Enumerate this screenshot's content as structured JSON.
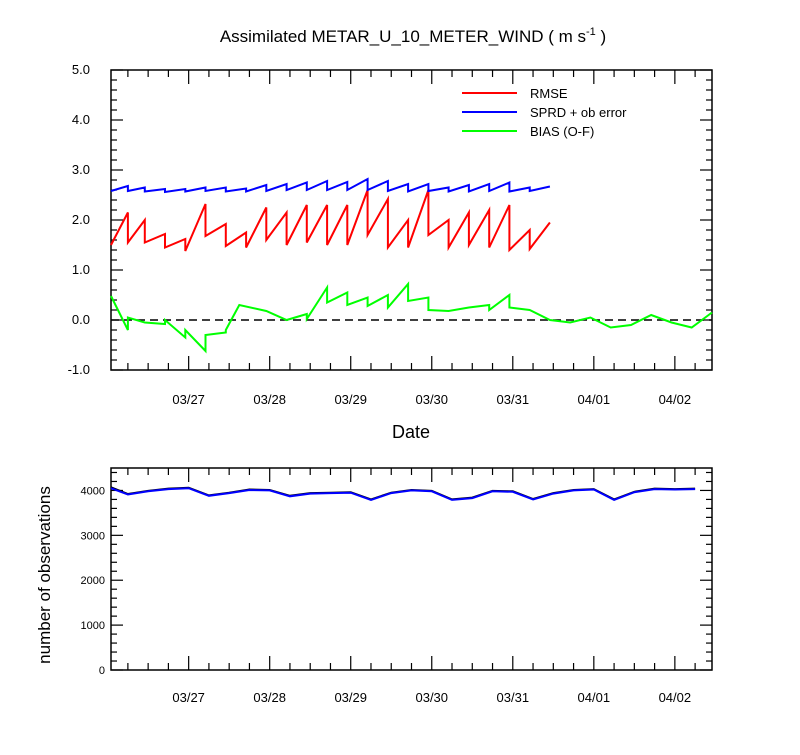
{
  "chart_data": [
    {
      "type": "line",
      "title_main": "Assimilated METAR_U_10_METER_WIND ( m s",
      "title_sup": "-1",
      "title_close": " )",
      "xlabel": "Date",
      "ylabel": "",
      "ylim": [
        -1.0,
        5.0
      ],
      "yticks": [
        "-1.0",
        "0.0",
        "1.0",
        "2.0",
        "3.0",
        "4.0",
        "5.0"
      ],
      "xlim": [
        "03/26 13:00",
        "04/02 23:00"
      ],
      "xtick_labels": [
        "03/27",
        "03/28",
        "03/29",
        "03/30",
        "03/31",
        "04/01",
        "04/02"
      ],
      "zero_line": true,
      "legend_position": "top-right",
      "series": [
        {
          "name": "RMSE",
          "color": "#ff0000",
          "points": [
            [
              "03/26 13:00",
              1.5
            ],
            [
              "03/26 18:00",
              2.15
            ],
            [
              "03/26 18:00",
              1.55
            ],
            [
              "03/26 23:00",
              2.0
            ],
            [
              "03/26 23:00",
              1.55
            ],
            [
              "03/27 05:00",
              1.72
            ],
            [
              "03/27 05:00",
              1.45
            ],
            [
              "03/27 11:00",
              1.62
            ],
            [
              "03/27 11:00",
              1.38
            ],
            [
              "03/27 17:00",
              2.32
            ],
            [
              "03/27 17:00",
              1.68
            ],
            [
              "03/27 23:00",
              1.92
            ],
            [
              "03/27 23:00",
              1.48
            ],
            [
              "03/28 05:00",
              1.75
            ],
            [
              "03/28 05:00",
              1.45
            ],
            [
              "03/28 11:00",
              2.25
            ],
            [
              "03/28 11:00",
              1.6
            ],
            [
              "03/28 17:00",
              2.15
            ],
            [
              "03/28 17:00",
              1.5
            ],
            [
              "03/28 23:00",
              2.3
            ],
            [
              "03/28 23:00",
              1.55
            ],
            [
              "03/29 05:00",
              2.3
            ],
            [
              "03/29 05:00",
              1.5
            ],
            [
              "03/29 11:00",
              2.3
            ],
            [
              "03/29 11:00",
              1.5
            ],
            [
              "03/29 17:00",
              2.6
            ],
            [
              "03/29 17:00",
              1.7
            ],
            [
              "03/29 23:00",
              2.42
            ],
            [
              "03/29 23:00",
              1.45
            ],
            [
              "03/30 05:00",
              2.0
            ],
            [
              "03/30 05:00",
              1.45
            ],
            [
              "03/30 11:00",
              2.6
            ],
            [
              "03/30 11:00",
              1.7
            ],
            [
              "03/30 17:00",
              2.0
            ],
            [
              "03/30 17:00",
              1.45
            ],
            [
              "03/30 23:00",
              2.15
            ],
            [
              "03/30 23:00",
              1.5
            ],
            [
              "03/31 05:00",
              2.2
            ],
            [
              "03/31 05:00",
              1.45
            ],
            [
              "03/31 11:00",
              2.3
            ],
            [
              "03/31 11:00",
              1.4
            ],
            [
              "03/31 17:00",
              1.8
            ],
            [
              "03/31 17:00",
              1.42
            ],
            [
              "03/31 23:00",
              1.95
            ]
          ]
        },
        {
          "name": "SPRD + ob error",
          "color": "#0000ff",
          "points": [
            [
              "03/26 13:00",
              2.58
            ],
            [
              "03/26 18:00",
              2.68
            ],
            [
              "03/26 18:00",
              2.58
            ],
            [
              "03/26 23:00",
              2.65
            ],
            [
              "03/26 23:00",
              2.57
            ],
            [
              "03/27 05:00",
              2.62
            ],
            [
              "03/27 05:00",
              2.56
            ],
            [
              "03/27 11:00",
              2.62
            ],
            [
              "03/27 11:00",
              2.57
            ],
            [
              "03/27 17:00",
              2.65
            ],
            [
              "03/27 17:00",
              2.58
            ],
            [
              "03/27 23:00",
              2.65
            ],
            [
              "03/27 23:00",
              2.57
            ],
            [
              "03/28 05:00",
              2.63
            ],
            [
              "03/28 05:00",
              2.57
            ],
            [
              "03/28 11:00",
              2.7
            ],
            [
              "03/28 11:00",
              2.58
            ],
            [
              "03/28 17:00",
              2.72
            ],
            [
              "03/28 17:00",
              2.6
            ],
            [
              "03/28 23:00",
              2.75
            ],
            [
              "03/28 23:00",
              2.6
            ],
            [
              "03/29 05:00",
              2.78
            ],
            [
              "03/29 05:00",
              2.6
            ],
            [
              "03/29 11:00",
              2.76
            ],
            [
              "03/29 11:00",
              2.6
            ],
            [
              "03/29 17:00",
              2.82
            ],
            [
              "03/29 17:00",
              2.6
            ],
            [
              "03/29 23:00",
              2.78
            ],
            [
              "03/29 23:00",
              2.58
            ],
            [
              "03/30 05:00",
              2.72
            ],
            [
              "03/30 05:00",
              2.57
            ],
            [
              "03/30 11:00",
              2.72
            ],
            [
              "03/30 11:00",
              2.58
            ],
            [
              "03/30 17:00",
              2.65
            ],
            [
              "03/30 17:00",
              2.57
            ],
            [
              "03/30 23:00",
              2.7
            ],
            [
              "03/30 23:00",
              2.57
            ],
            [
              "03/31 05:00",
              2.72
            ],
            [
              "03/31 05:00",
              2.58
            ],
            [
              "03/31 11:00",
              2.75
            ],
            [
              "03/31 11:00",
              2.57
            ],
            [
              "03/31 17:00",
              2.65
            ],
            [
              "03/31 17:00",
              2.58
            ],
            [
              "03/31 23:00",
              2.67
            ]
          ]
        },
        {
          "name": "BIAS (O-F)",
          "color": "#00ff00",
          "points": [
            [
              "03/26 13:00",
              0.48
            ],
            [
              "03/26 18:00",
              -0.2
            ],
            [
              "03/26 18:00",
              0.05
            ],
            [
              "03/26 23:00",
              -0.05
            ],
            [
              "03/27 05:00",
              -0.08
            ],
            [
              "03/27 05:00",
              0.0
            ],
            [
              "03/27 11:00",
              -0.35
            ],
            [
              "03/27 11:00",
              -0.2
            ],
            [
              "03/27 17:00",
              -0.62
            ],
            [
              "03/27 17:00",
              -0.3
            ],
            [
              "03/27 23:00",
              -0.25
            ],
            [
              "03/27 23:00",
              -0.2
            ],
            [
              "03/28 03:00",
              0.3
            ],
            [
              "03/28 11:00",
              0.18
            ],
            [
              "03/28 17:00",
              0.0
            ],
            [
              "03/28 23:00",
              0.12
            ],
            [
              "03/28 23:00",
              0.02
            ],
            [
              "03/29 05:00",
              0.65
            ],
            [
              "03/29 05:00",
              0.35
            ],
            [
              "03/29 11:00",
              0.55
            ],
            [
              "03/29 11:00",
              0.3
            ],
            [
              "03/29 17:00",
              0.45
            ],
            [
              "03/29 17:00",
              0.28
            ],
            [
              "03/29 23:00",
              0.5
            ],
            [
              "03/29 23:00",
              0.25
            ],
            [
              "03/30 05:00",
              0.72
            ],
            [
              "03/30 05:00",
              0.38
            ],
            [
              "03/30 11:00",
              0.45
            ],
            [
              "03/30 11:00",
              0.2
            ],
            [
              "03/30 17:00",
              0.18
            ],
            [
              "03/30 23:00",
              0.25
            ],
            [
              "03/31 05:00",
              0.3
            ],
            [
              "03/31 05:00",
              0.2
            ],
            [
              "03/31 11:00",
              0.5
            ],
            [
              "03/31 11:00",
              0.25
            ],
            [
              "03/31 17:00",
              0.2
            ],
            [
              "03/31 23:00",
              0.0
            ],
            [
              "04/01 05:00",
              -0.05
            ],
            [
              "04/01 11:00",
              0.05
            ],
            [
              "04/01 17:00",
              -0.15
            ],
            [
              "04/01 23:00",
              -0.1
            ],
            [
              "04/02 05:00",
              0.1
            ],
            [
              "04/02 11:00",
              -0.05
            ],
            [
              "04/02 17:00",
              -0.15
            ],
            [
              "04/02 23:00",
              0.15
            ]
          ]
        }
      ]
    },
    {
      "type": "line",
      "title": "",
      "xlabel": "",
      "ylabel": "number of observations",
      "ylim": [
        0,
        4500
      ],
      "yticks": [
        "0",
        "1000",
        "2000",
        "3000",
        "4000"
      ],
      "xlim": [
        "03/26 13:00",
        "04/02 23:00"
      ],
      "xtick_labels": [
        "03/27",
        "03/28",
        "03/29",
        "03/30",
        "03/31",
        "04/01",
        "04/02"
      ],
      "series": [
        {
          "color": "#000000",
          "points": [
            [
              "03/26 13:00",
              4070
            ],
            [
              "03/26 18:00",
              3920
            ],
            [
              "03/27 00:00",
              3990
            ],
            [
              "03/27 06:00",
              4040
            ],
            [
              "03/27 12:00",
              4060
            ],
            [
              "03/27 18:00",
              3890
            ],
            [
              "03/28 00:00",
              3950
            ],
            [
              "03/28 06:00",
              4020
            ],
            [
              "03/28 12:00",
              4010
            ],
            [
              "03/28 18:00",
              3880
            ],
            [
              "03/29 00:00",
              3940
            ],
            [
              "03/29 06:00",
              3950
            ],
            [
              "03/29 12:00",
              3960
            ],
            [
              "03/29 18:00",
              3800
            ],
            [
              "03/30 00:00",
              3950
            ],
            [
              "03/30 06:00",
              4010
            ],
            [
              "03/30 12:00",
              3990
            ],
            [
              "03/30 18:00",
              3800
            ],
            [
              "03/31 00:00",
              3840
            ],
            [
              "03/31 06:00",
              3990
            ],
            [
              "03/31 12:00",
              3980
            ],
            [
              "03/31 18:00",
              3810
            ],
            [
              "04/01 00:00",
              3940
            ],
            [
              "04/01 06:00",
              4010
            ],
            [
              "04/01 12:00",
              4030
            ],
            [
              "04/01 18:00",
              3800
            ],
            [
              "04/02 00:00",
              3970
            ],
            [
              "04/02 06:00",
              4040
            ],
            [
              "04/02 12:00",
              4030
            ],
            [
              "04/02 18:00",
              4040
            ]
          ]
        },
        {
          "color": "#0000ff",
          "points": [
            [
              "03/26 13:00",
              4050
            ],
            [
              "03/26 18:00",
              3910
            ],
            [
              "03/27 00:00",
              3980
            ],
            [
              "03/27 06:00",
              4030
            ],
            [
              "03/27 12:00",
              4050
            ],
            [
              "03/27 18:00",
              3880
            ],
            [
              "03/28 00:00",
              3940
            ],
            [
              "03/28 06:00",
              4010
            ],
            [
              "03/28 12:00",
              4000
            ],
            [
              "03/28 18:00",
              3870
            ],
            [
              "03/29 00:00",
              3930
            ],
            [
              "03/29 06:00",
              3940
            ],
            [
              "03/29 12:00",
              3950
            ],
            [
              "03/29 18:00",
              3790
            ],
            [
              "03/30 00:00",
              3940
            ],
            [
              "03/30 06:00",
              4000
            ],
            [
              "03/30 12:00",
              3980
            ],
            [
              "03/30 18:00",
              3790
            ],
            [
              "03/31 00:00",
              3830
            ],
            [
              "03/31 06:00",
              3980
            ],
            [
              "03/31 12:00",
              3970
            ],
            [
              "03/31 18:00",
              3800
            ],
            [
              "04/01 00:00",
              3930
            ],
            [
              "04/01 06:00",
              4000
            ],
            [
              "04/01 12:00",
              4020
            ],
            [
              "04/01 18:00",
              3790
            ],
            [
              "04/02 00:00",
              3960
            ],
            [
              "04/02 06:00",
              4030
            ],
            [
              "04/02 12:00",
              4020
            ],
            [
              "04/02 18:00",
              4030
            ]
          ]
        }
      ]
    }
  ]
}
